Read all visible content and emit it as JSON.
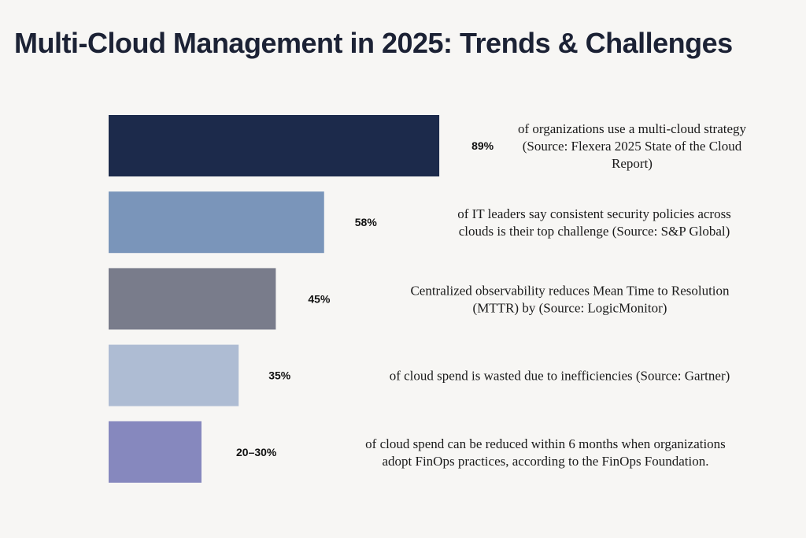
{
  "chart_data": {
    "type": "bar",
    "orientation": "horizontal",
    "title": "Multi-Cloud Management in 2025: Trends & Challenges",
    "xlabel": "",
    "ylabel": "",
    "xlim": [
      0,
      100
    ],
    "grid": false,
    "values": [
      89,
      58,
      45,
      35,
      25
    ],
    "value_labels": [
      "89%",
      "58%",
      "45%",
      "35%",
      "20–30%"
    ],
    "colors": [
      "#1c2a4b",
      "#7a95ba",
      "#797c8b",
      "#aebcd3",
      "#8688be"
    ],
    "descriptions": [
      [
        "of organizations use a multi-cloud strategy",
        "(Source: Flexera 2025 State of the Cloud",
        "Report)"
      ],
      [
        "of IT leaders say consistent security policies across",
        "clouds is their top challenge (Source: S&P Global)"
      ],
      [
        "Centralized observability reduces Mean Time to Resolution",
        "(MTTR) by  (Source: LogicMonitor)"
      ],
      [
        "of cloud spend is wasted due to inefficiencies (Source: Gartner)"
      ],
      [
        "of cloud spend can be reduced within 6 months when organizations",
        "adopt FinOps practices, according to the FinOps Foundation."
      ]
    ]
  }
}
